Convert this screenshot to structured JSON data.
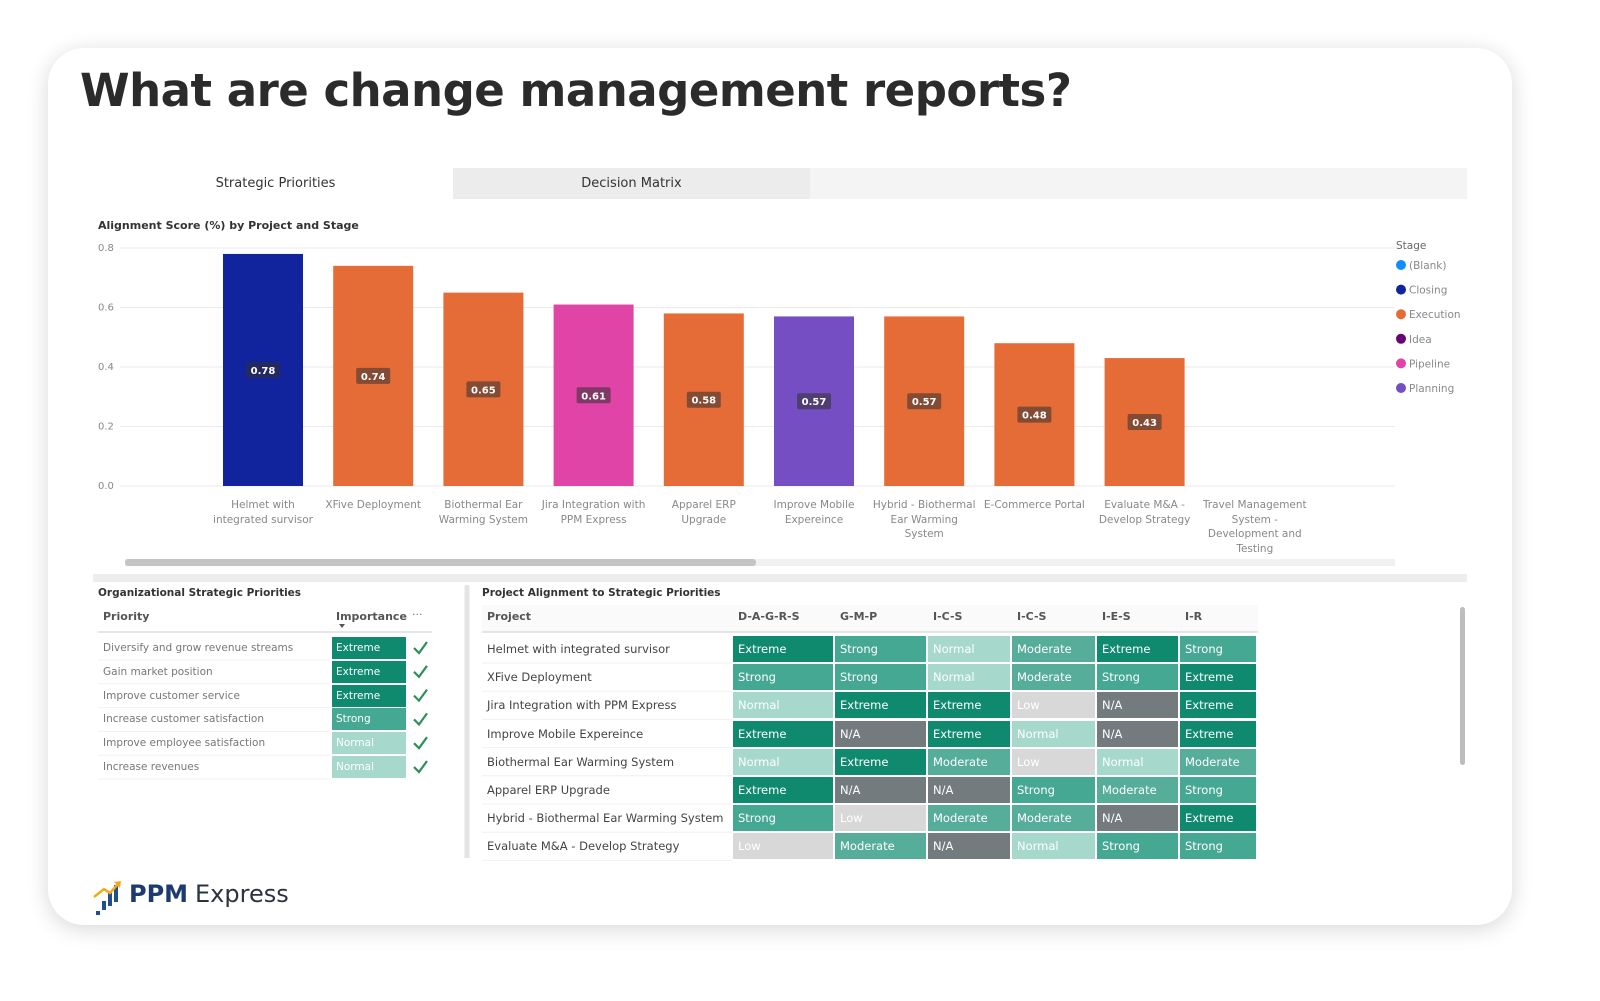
{
  "header": {
    "title": "What are change management reports?"
  },
  "tabs": [
    "Strategic Priorities",
    "Decision Matrix"
  ],
  "chart_data": {
    "type": "bar",
    "title": "Alignment Score (%) by Project and Stage",
    "categories": [
      "Helmet with integrated survisor",
      "XFive Deployment",
      "Biothermal Ear Warming System",
      "Jira Integration with PPM Express",
      "Apparel ERP Upgrade",
      "Improve Mobile Expereince",
      "Hybrid - Biothermal Ear Warming System",
      "E-Commerce Portal",
      "Evaluate M&A - Develop Strategy",
      "Travel Management System - Development and Testing"
    ],
    "values": [
      0.78,
      0.74,
      0.65,
      0.61,
      0.58,
      0.57,
      0.57,
      0.48,
      0.43,
      null
    ],
    "colors": [
      "#12239e",
      "#e66c37",
      "#e66c37",
      "#e044a7",
      "#e66c37",
      "#744ec2",
      "#e66c37",
      "#e66c37",
      "#e66c37",
      null
    ],
    "ylim": [
      0,
      0.8
    ],
    "yticks": [
      {
        "value": 0,
        "label": "0.0"
      },
      0.2,
      0.4,
      0.6,
      0.8
    ],
    "grid": true,
    "legend": {
      "title": "Stage",
      "position": "right",
      "items": [
        {
          "name": "(Blank)",
          "color": "#118dff"
        },
        {
          "name": "Closing",
          "color": "#12239e"
        },
        {
          "name": "Execution",
          "color": "#e66c37"
        },
        {
          "name": "Idea",
          "color": "#6b007b"
        },
        {
          "name": "Pipeline",
          "color": "#e044a7"
        },
        {
          "name": "Planning",
          "color": "#744ec2"
        }
      ]
    }
  },
  "priorities_table": {
    "title": "Organizational Strategic Priorities",
    "columns": [
      "Priority",
      "Importance",
      "···"
    ],
    "rows": [
      [
        "Diversify and grow revenue streams",
        "Extreme"
      ],
      [
        "Gain market position",
        "Extreme"
      ],
      [
        "Improve customer service",
        "Extreme"
      ],
      [
        "Increase customer satisfaction",
        "Strong"
      ],
      [
        "Improve employee satisfaction",
        "Normal"
      ],
      [
        "Increase revenues",
        "Normal"
      ]
    ]
  },
  "alignment_table": {
    "title": "Project Alignment to Strategic Priorities",
    "columns": [
      "Project",
      "D-A-G-R-S",
      "G-M-P",
      "I-C-S",
      "I-C-S",
      "I-E-S",
      "I-R"
    ],
    "rows": [
      [
        "Helmet with integrated survisor",
        "Extreme",
        "Strong",
        "Normal",
        "Moderate",
        "Extreme",
        "Strong"
      ],
      [
        "XFive Deployment",
        "Strong",
        "Strong",
        "Normal",
        "Moderate",
        "Strong",
        "Extreme"
      ],
      [
        "Jira Integration with PPM Express",
        "Normal",
        "Extreme",
        "Extreme",
        "Low",
        "N/A",
        "Extreme"
      ],
      [
        "Improve Mobile Expereince",
        "Extreme",
        "N/A",
        "Extreme",
        "Normal",
        "N/A",
        "Extreme"
      ],
      [
        "Biothermal Ear Warming System",
        "Normal",
        "Extreme",
        "Moderate",
        "Low",
        "Normal",
        "Moderate"
      ],
      [
        "Apparel ERP Upgrade",
        "Extreme",
        "N/A",
        "N/A",
        "Strong",
        "Moderate",
        "Strong"
      ],
      [
        "Hybrid - Biothermal Ear Warming System",
        "Strong",
        "Low",
        "Moderate",
        "Moderate",
        "N/A",
        "Extreme"
      ],
      [
        "Evaluate M&A - Develop Strategy",
        "Low",
        "Moderate",
        "N/A",
        "Normal",
        "Strong",
        "Strong"
      ]
    ]
  },
  "level_colors": {
    "Extreme": "#0f8a6f",
    "Strong": "#45a892",
    "Moderate": "#55ad9a",
    "Normal": "#a6d8cb",
    "Low": "#d8d8d8",
    "N/A": "#737b7f"
  },
  "brand": {
    "strong": "PPM",
    "light": "Express"
  }
}
